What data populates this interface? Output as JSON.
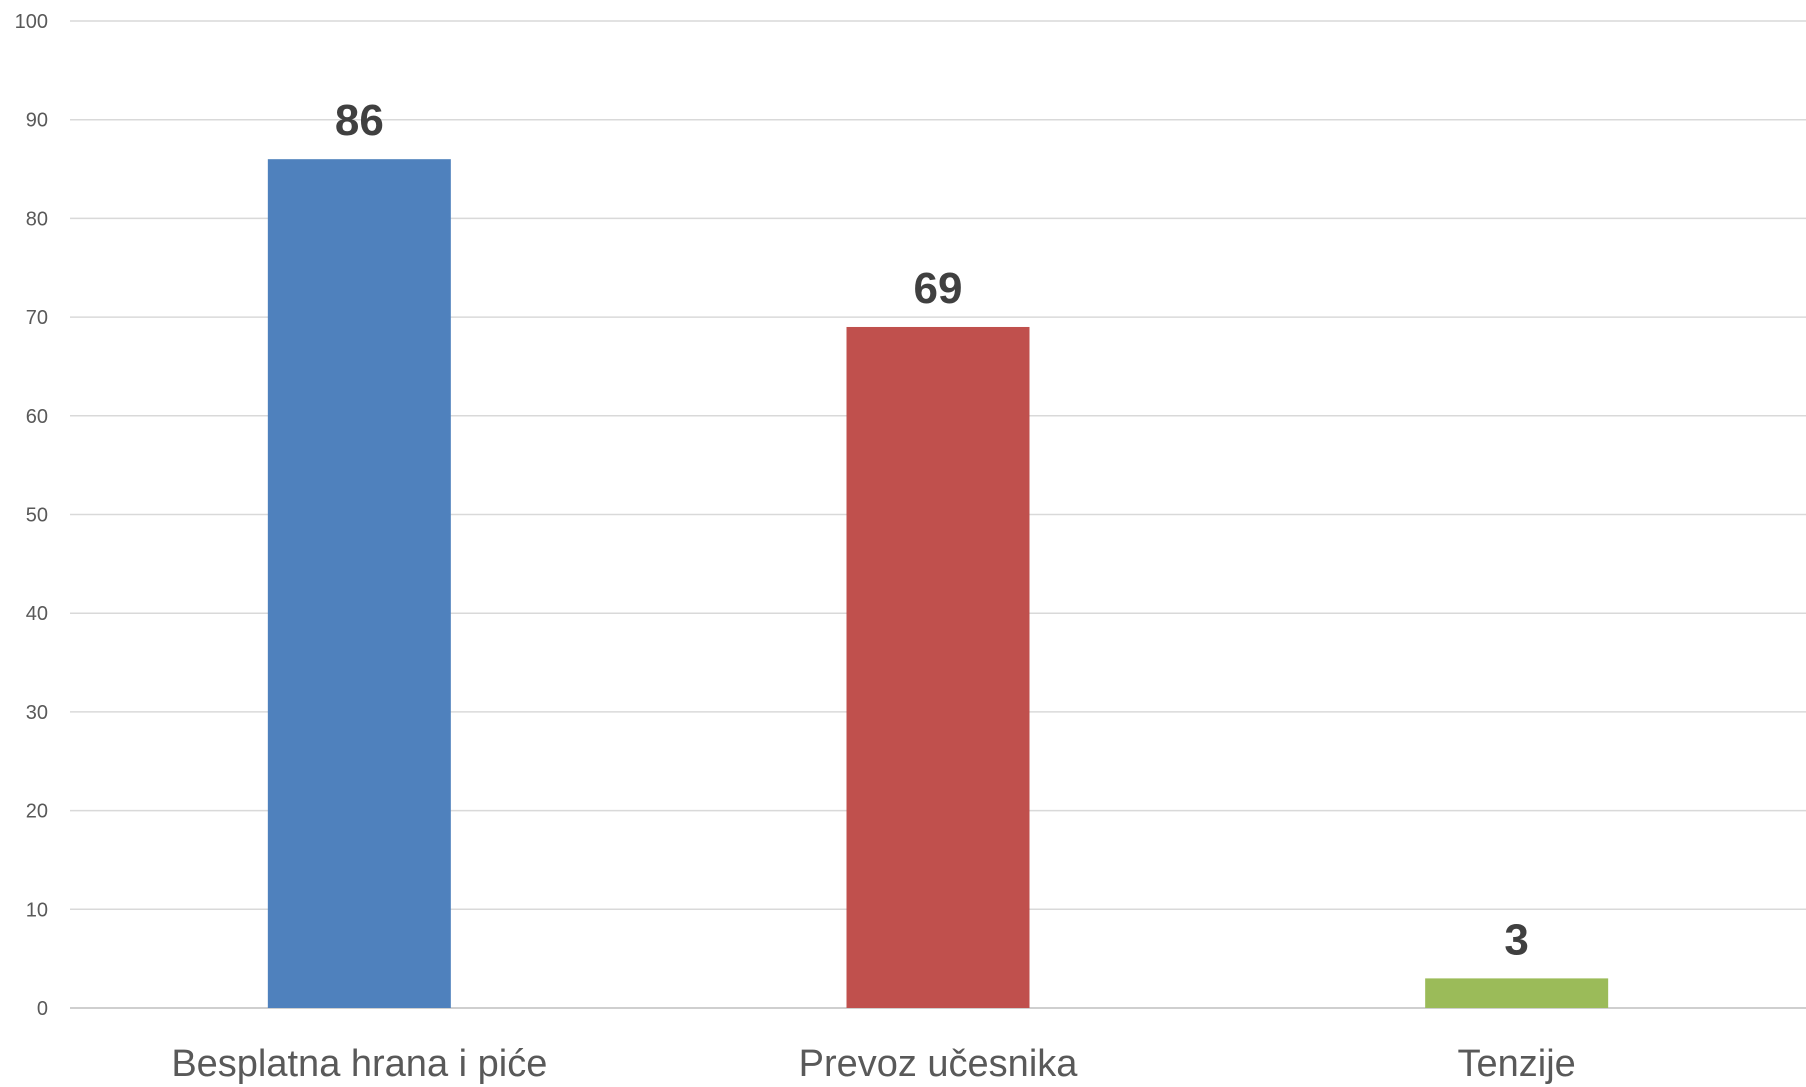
{
  "chart_data": {
    "type": "bar",
    "title": "",
    "xlabel": "",
    "ylabel": "",
    "categories": [
      "Besplatna hrana i piće",
      "Prevoz učesnika",
      "Tenzije"
    ],
    "values": [
      86,
      69,
      3
    ],
    "data_labels": [
      "86",
      "69",
      "3"
    ],
    "colors": [
      "#4f81bd",
      "#c0504d",
      "#9bbb59"
    ],
    "ylim": [
      0,
      100
    ],
    "yticks": [
      0,
      10,
      20,
      30,
      40,
      50,
      60,
      70,
      80,
      90,
      100
    ],
    "ytick_labels": [
      "0",
      "10",
      "20",
      "30",
      "40",
      "50",
      "60",
      "70",
      "80",
      "90",
      "100"
    ],
    "grid": true,
    "legend": "none"
  }
}
